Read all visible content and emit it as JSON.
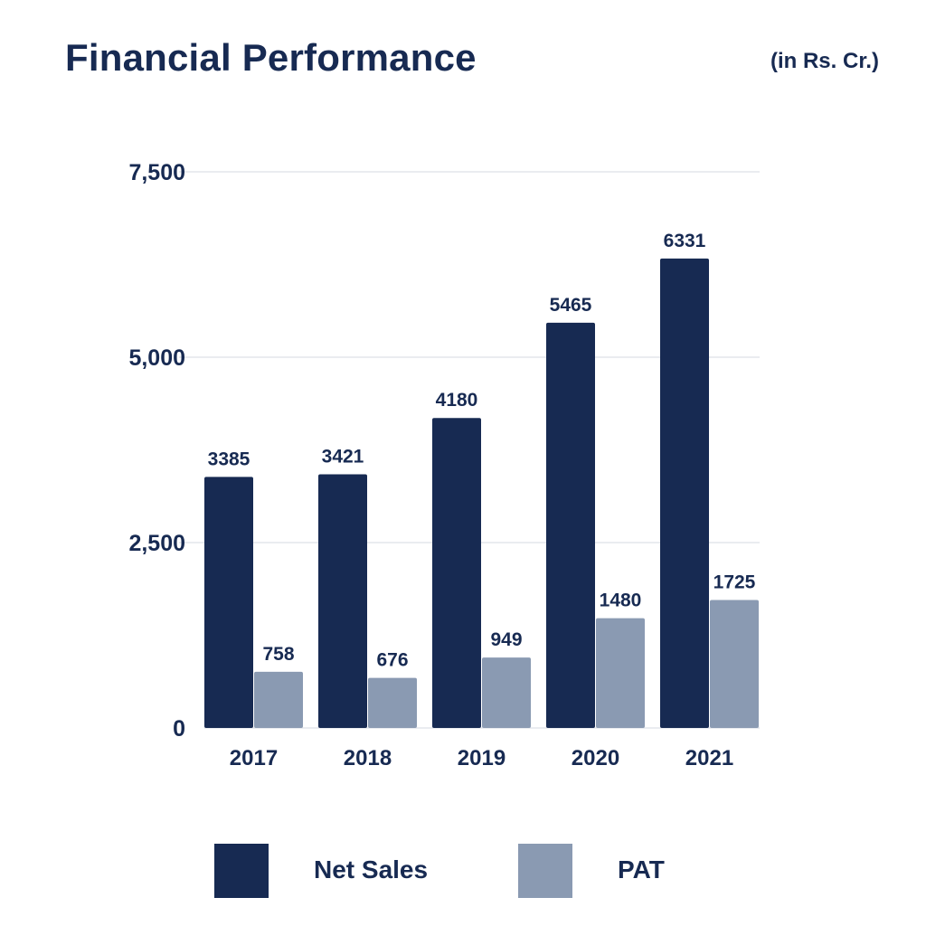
{
  "header": {
    "title": "Financial Performance",
    "unit_note": "(in Rs. Cr.)"
  },
  "colors": {
    "net_sales": "#172a52",
    "pat": "#8a9ab2",
    "text": "#172a52",
    "grid": "#e3e6ec"
  },
  "chart_data": {
    "type": "bar",
    "title": "Financial Performance",
    "subtitle": "(in Rs. Cr.)",
    "xlabel": "",
    "ylabel": "",
    "categories": [
      "2017",
      "2018",
      "2019",
      "2020",
      "2021"
    ],
    "series": [
      {
        "name": "Net Sales",
        "values": [
          3385,
          3421,
          4180,
          5465,
          6331
        ]
      },
      {
        "name": "PAT",
        "values": [
          758,
          676,
          949,
          1480,
          1725
        ]
      }
    ],
    "ylim": [
      0,
      7500
    ],
    "yticks": [
      0,
      2500,
      5000,
      7500
    ],
    "ytick_labels": [
      "0",
      "2,500",
      "5,000",
      "7,500"
    ],
    "grid": true,
    "legend_position": "bottom",
    "data_labels": true
  }
}
